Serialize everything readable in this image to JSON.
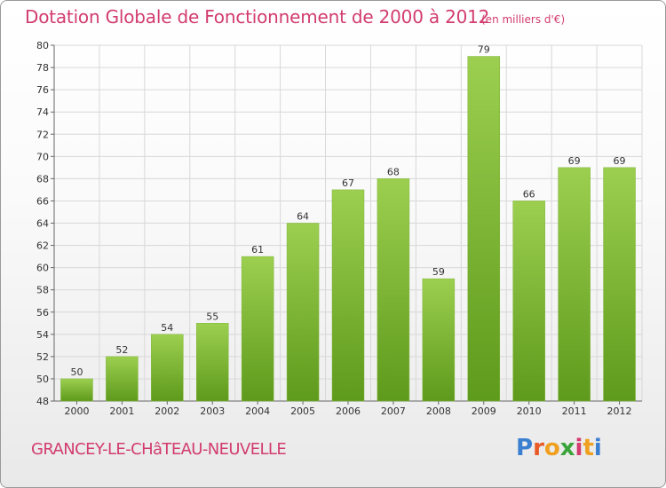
{
  "header": {
    "title": "Dotation Globale de Fonctionnement de 2000 à 2012",
    "subtitle": "(en milliers d'€)"
  },
  "footer": {
    "commune": "GRANCEY-LE-CHâTEAU-NEUVELLE",
    "logo_text": "Proxiti",
    "logo_colors": [
      "#3b7fd1",
      "#e85a26",
      "#f0a020",
      "#3aa43a",
      "#d23c6e",
      "#f0a020",
      "#3b7fd1"
    ]
  },
  "colors": {
    "title": "#d23c6e",
    "bar_top": "#9ccf4f",
    "bar_bottom": "#5e9a1c"
  },
  "chart_data": {
    "type": "bar",
    "title": "Dotation Globale de Fonctionnement de 2000 à 2012",
    "subtitle": "(en milliers d'€)",
    "xlabel": "",
    "ylabel": "",
    "categories": [
      "2000",
      "2001",
      "2002",
      "2003",
      "2004",
      "2005",
      "2006",
      "2007",
      "2008",
      "2009",
      "2010",
      "2011",
      "2012"
    ],
    "values": [
      50,
      52,
      54,
      55,
      61,
      64,
      67,
      68,
      59,
      79,
      66,
      69,
      69
    ],
    "ylim": [
      48,
      80
    ],
    "yticks": [
      48,
      50,
      52,
      54,
      56,
      58,
      60,
      62,
      64,
      66,
      68,
      70,
      72,
      74,
      76,
      78,
      80
    ],
    "grid": true
  }
}
